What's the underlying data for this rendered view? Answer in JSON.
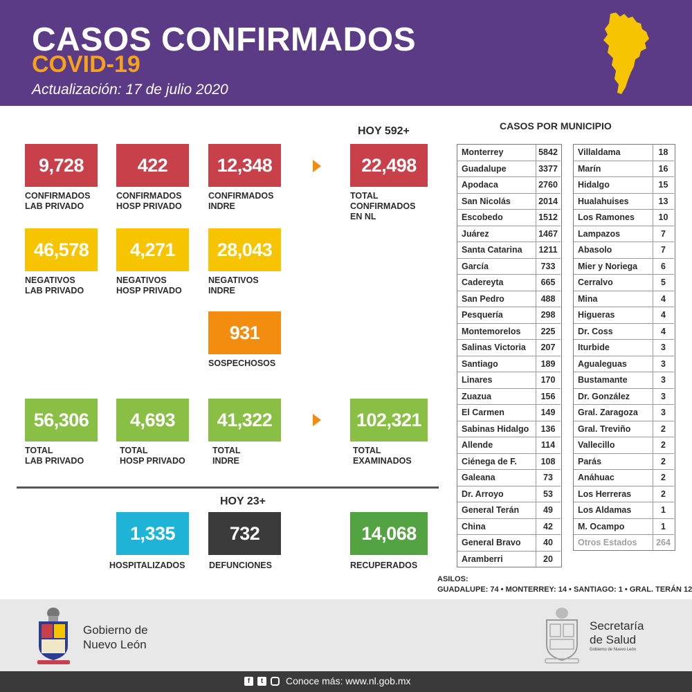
{
  "header": {
    "title": "CASOS CONFIRMADOS",
    "subtitle": "COVID-19",
    "update": "Actualización: 17 de julio 2020"
  },
  "hoy_confirmados": "HOY 592+",
  "hoy_defunciones": "HOY 23+",
  "confirmed": [
    {
      "value": "9,728",
      "l1": "CONFIRMADOS",
      "l2": "LAB PRIVADO"
    },
    {
      "value": "422",
      "l1": "CONFIRMADOS",
      "l2": "HOSP PRIVADO"
    },
    {
      "value": "12,348",
      "l1": "CONFIRMADOS",
      "l2": "INDRE"
    },
    {
      "value": "22,498",
      "l1": "TOTAL",
      "l2": "CONFIRMADOS",
      "l3": "EN NL"
    }
  ],
  "negatives": [
    {
      "value": "46,578",
      "l1": "NEGATIVOS",
      "l2": "LAB PRIVADO"
    },
    {
      "value": "4,271",
      "l1": "NEGATIVOS",
      "l2": "HOSP PRIVADO"
    },
    {
      "value": "28,043",
      "l1": "NEGATIVOS",
      "l2": "INDRE"
    }
  ],
  "suspects": {
    "value": "931",
    "l1": "SOSPECHOSOS"
  },
  "totals": [
    {
      "value": "56,306",
      "l1": "TOTAL",
      "l2": "LAB PRIVADO"
    },
    {
      "value": "4,693",
      "l1": "TOTAL",
      "l2": "HOSP PRIVADO"
    },
    {
      "value": "41,322",
      "l1": "TOTAL",
      "l2": "INDRE"
    },
    {
      "value": "102,321",
      "l1": "TOTAL",
      "l2": "EXAMINADOS"
    }
  ],
  "outcomes": [
    {
      "value": "1,335",
      "l1": "HOSPITALIZADOS"
    },
    {
      "value": "732",
      "l1": "DEFUNCIONES"
    },
    {
      "value": "14,068",
      "l1": "RECUPERADOS"
    }
  ],
  "municipios_title": "CASOS POR MUNICIPIO",
  "municipios_left": [
    {
      "name": "Monterrey",
      "value": "5842"
    },
    {
      "name": "Guadalupe",
      "value": "3377"
    },
    {
      "name": "Apodaca",
      "value": "2760"
    },
    {
      "name": "San Nicolás",
      "value": "2014"
    },
    {
      "name": "Escobedo",
      "value": "1512"
    },
    {
      "name": "Juárez",
      "value": "1467"
    },
    {
      "name": "Santa Catarina",
      "value": "1211"
    },
    {
      "name": "García",
      "value": "733"
    },
    {
      "name": "Cadereyta",
      "value": "665"
    },
    {
      "name": "San Pedro",
      "value": "488"
    },
    {
      "name": "Pesquería",
      "value": "298"
    },
    {
      "name": "Montemorelos",
      "value": "225"
    },
    {
      "name": "Salinas Victoria",
      "value": "207"
    },
    {
      "name": "Santiago",
      "value": "189"
    },
    {
      "name": "Linares",
      "value": "170"
    },
    {
      "name": "Zuazua",
      "value": "156"
    },
    {
      "name": "El Carmen",
      "value": "149"
    },
    {
      "name": "Sabinas Hidalgo",
      "value": "136"
    },
    {
      "name": "Allende",
      "value": "114"
    },
    {
      "name": "Ciénega de F.",
      "value": "108"
    },
    {
      "name": "Galeana",
      "value": "73"
    },
    {
      "name": "Dr. Arroyo",
      "value": "53"
    },
    {
      "name": "General Terán",
      "value": "49"
    },
    {
      "name": "China",
      "value": "42"
    },
    {
      "name": "General Bravo",
      "value": "40"
    },
    {
      "name": "Aramberri",
      "value": "20"
    }
  ],
  "municipios_right": [
    {
      "name": "Villaldama",
      "value": "18"
    },
    {
      "name": "Marín",
      "value": "16"
    },
    {
      "name": "Hidalgo",
      "value": "15"
    },
    {
      "name": "Hualahuises",
      "value": "13"
    },
    {
      "name": "Los Ramones",
      "value": "10"
    },
    {
      "name": "Lampazos",
      "value": "7"
    },
    {
      "name": "Abasolo",
      "value": "7"
    },
    {
      "name": "Mier y Noriega",
      "value": "6"
    },
    {
      "name": "Cerralvo",
      "value": "5"
    },
    {
      "name": "Mina",
      "value": "4"
    },
    {
      "name": "Higueras",
      "value": "4"
    },
    {
      "name": "Dr. Coss",
      "value": "4"
    },
    {
      "name": "Iturbide",
      "value": "3"
    },
    {
      "name": "Agualeguas",
      "value": "3"
    },
    {
      "name": "Bustamante",
      "value": "3"
    },
    {
      "name": "Dr. González",
      "value": "3"
    },
    {
      "name": "Gral. Zaragoza",
      "value": "3"
    },
    {
      "name": "Gral. Treviño",
      "value": "2"
    },
    {
      "name": "Vallecillo",
      "value": "2"
    },
    {
      "name": "Parás",
      "value": "2"
    },
    {
      "name": "Anáhuac",
      "value": "2"
    },
    {
      "name": "Los Herreras",
      "value": "2"
    },
    {
      "name": "Los Aldamas",
      "value": "1"
    },
    {
      "name": "M. Ocampo",
      "value": "1"
    },
    {
      "name": "Otros Estados",
      "value": "264"
    }
  ],
  "asilos": {
    "title": "ASILOS:",
    "detail": "GUADALUPE: 74 • MONTERREY: 14 • SANTIAGO: 1 • GRAL. TERÁN 12"
  },
  "footer": {
    "gob_line1": "Gobierno de",
    "gob_line2": "Nuevo León",
    "sal_line1": "Secretaría",
    "sal_line2": "de Salud",
    "sal_small": "Gobierno de Nuevo León",
    "conoce": "Conoce más: www.nl.gob.mx"
  },
  "colors": {
    "header": "#5b3a86",
    "accent_orange": "#f7a21b",
    "confirmed_red": "#c8414a",
    "negative_yellow": "#f6c400",
    "suspect_orange": "#f28d10",
    "total_green": "#89bf44",
    "hospital_blue": "#1fb4d7",
    "death_dark": "#3b3b3b",
    "recovered_green": "#54a342"
  },
  "icons": [
    "nuevo-leon-map-icon",
    "facebook-icon",
    "twitter-icon",
    "instagram-icon",
    "nl-shield-icon",
    "salud-shield-icon"
  ]
}
